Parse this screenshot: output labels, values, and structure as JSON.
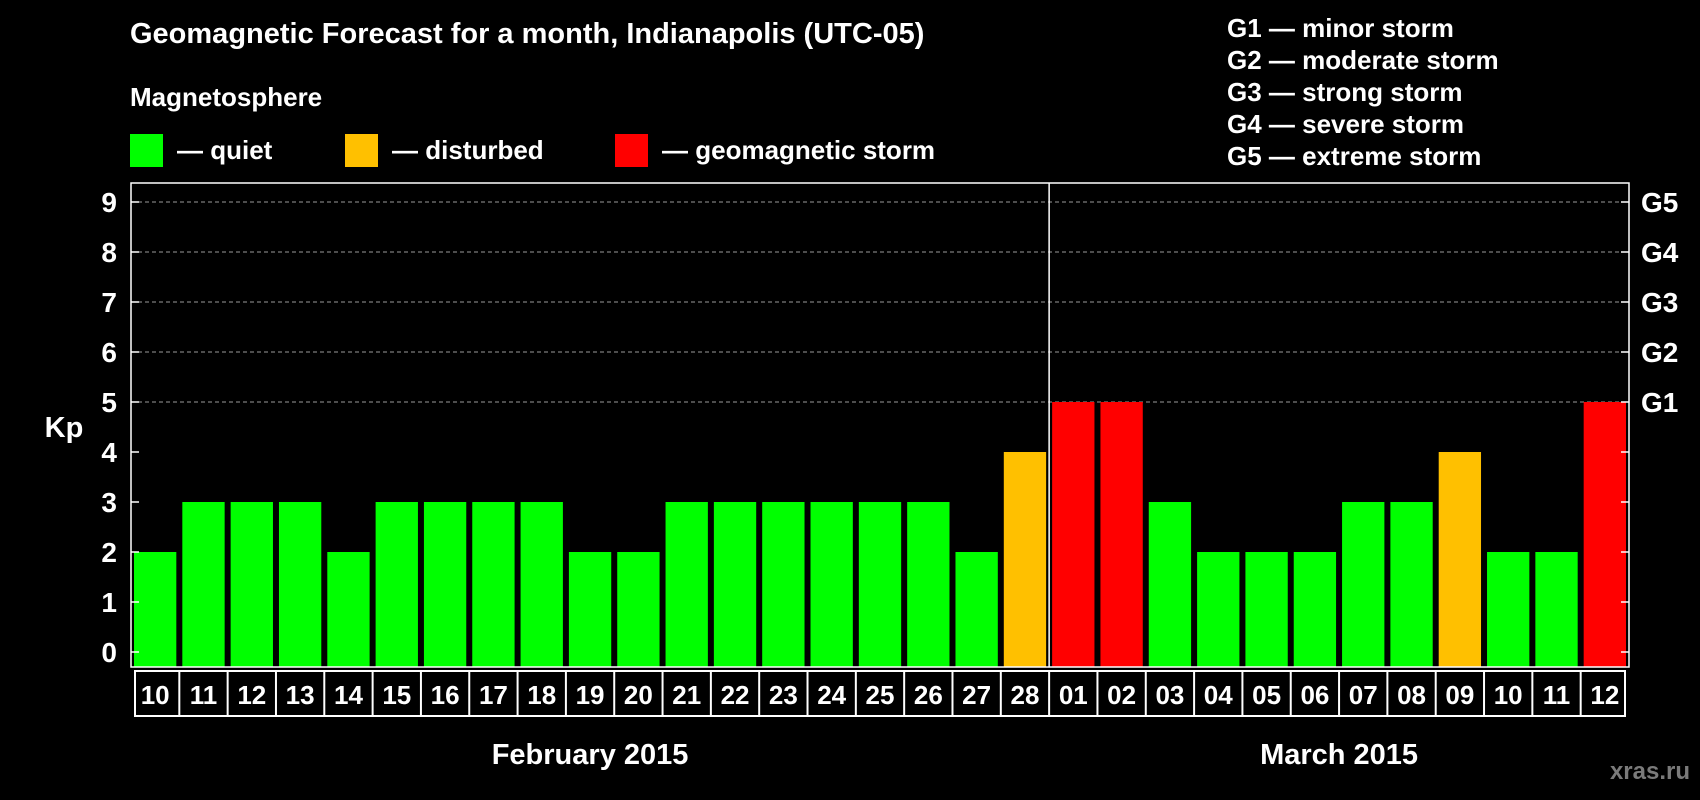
{
  "title": "Geomagnetic Forecast for a month, Indianapolis (UTC-05)",
  "subtitle": "Magnetosphere",
  "legend": [
    {
      "label": "— quiet",
      "color": "#00ff00"
    },
    {
      "label": "— disturbed",
      "color": "#ffc000"
    },
    {
      "label": "— geomagnetic storm",
      "color": "#ff0000"
    }
  ],
  "storm_scale": [
    "G1 — minor storm",
    "G2 — moderate storm",
    "G3 — strong storm",
    "G4 — severe storm",
    "G5 — extreme storm"
  ],
  "watermark": "xras.ru",
  "colors": {
    "quiet": "#00ff00",
    "disturbed": "#ffc000",
    "storm": "#ff0000",
    "background": "#000000",
    "axis": "#ffffff",
    "grid": "#9a9a9a"
  },
  "chart_data": {
    "type": "bar",
    "title": "Geomagnetic Forecast for a month, Indianapolis (UTC-05)",
    "ylabel": "Kp",
    "ylim": [
      0,
      9
    ],
    "yticks": [
      0,
      1,
      2,
      3,
      4,
      5,
      6,
      7,
      8,
      9
    ],
    "grid": "horizontal dashed lines at 5, 6, 7, 8, 9",
    "right_axis_labels": [
      {
        "value": 5,
        "label": "G1"
      },
      {
        "value": 6,
        "label": "G2"
      },
      {
        "value": 7,
        "label": "G3"
      },
      {
        "value": 8,
        "label": "G4"
      },
      {
        "value": 9,
        "label": "G5"
      }
    ],
    "categories": [
      "10",
      "11",
      "12",
      "13",
      "14",
      "15",
      "16",
      "17",
      "18",
      "19",
      "20",
      "21",
      "22",
      "23",
      "24",
      "25",
      "26",
      "27",
      "28",
      "01",
      "02",
      "03",
      "04",
      "05",
      "06",
      "07",
      "08",
      "09",
      "10",
      "11",
      "12"
    ],
    "values": [
      2,
      3,
      3,
      3,
      2,
      3,
      3,
      3,
      3,
      2,
      2,
      3,
      3,
      3,
      3,
      3,
      3,
      2,
      4,
      5,
      5,
      3,
      2,
      2,
      2,
      3,
      3,
      4,
      2,
      2,
      5
    ],
    "status": [
      "quiet",
      "quiet",
      "quiet",
      "quiet",
      "quiet",
      "quiet",
      "quiet",
      "quiet",
      "quiet",
      "quiet",
      "quiet",
      "quiet",
      "quiet",
      "quiet",
      "quiet",
      "quiet",
      "quiet",
      "quiet",
      "disturbed",
      "storm",
      "storm",
      "quiet",
      "quiet",
      "quiet",
      "quiet",
      "quiet",
      "quiet",
      "disturbed",
      "quiet",
      "quiet",
      "storm"
    ],
    "month_groups": [
      {
        "label": "February 2015",
        "start": 0,
        "end": 18
      },
      {
        "label": "March 2015",
        "start": 19,
        "end": 30
      }
    ]
  }
}
